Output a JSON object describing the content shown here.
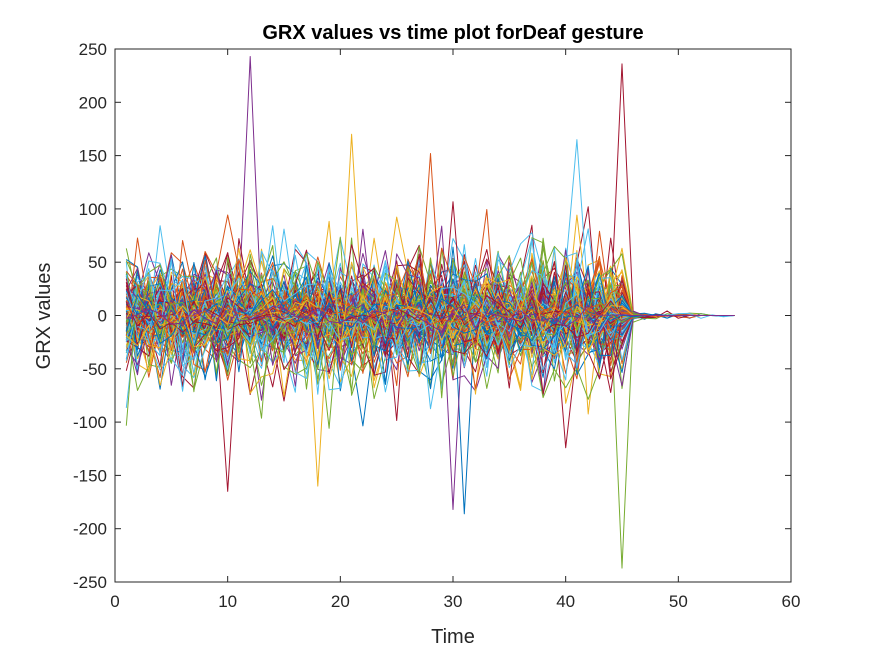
{
  "chart_data": {
    "type": "line",
    "title": "GRX values vs time plot forDeaf gesture",
    "xlabel": "Time",
    "ylabel": "GRX values",
    "xlim": [
      0,
      60
    ],
    "ylim": [
      -250,
      250
    ],
    "xticks": [
      0,
      10,
      20,
      30,
      40,
      50,
      60
    ],
    "yticks": [
      250,
      200,
      150,
      100,
      50,
      0,
      -50,
      -100,
      -150,
      -200,
      -250
    ],
    "grid": false,
    "legend": "none",
    "series_count": 200,
    "palette": [
      "#0072BD",
      "#D95319",
      "#EDB120",
      "#7E2F8E",
      "#77AC30",
      "#4DBEEE",
      "#A2142F"
    ],
    "x_range_of_series": [
      1,
      55
    ],
    "approx_peaks": [
      {
        "x": 12,
        "y": 243
      },
      {
        "x": 45,
        "y": 236
      },
      {
        "x": 21,
        "y": 170
      },
      {
        "x": 41,
        "y": 165
      },
      {
        "x": 28,
        "y": 152
      },
      {
        "x": 45,
        "y": -237
      },
      {
        "x": 31,
        "y": -186
      },
      {
        "x": 30,
        "y": -182
      },
      {
        "x": 10,
        "y": -165
      },
      {
        "x": 18,
        "y": -160
      }
    ]
  }
}
